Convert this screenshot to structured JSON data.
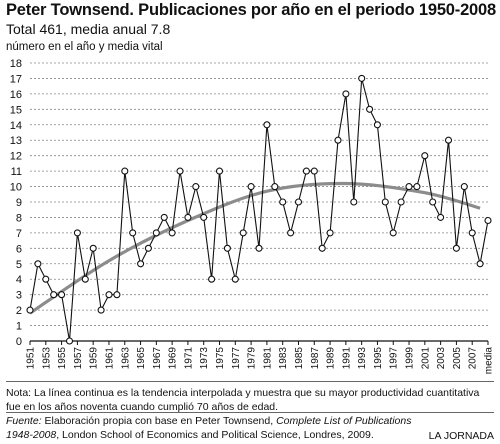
{
  "header": {
    "title": "Peter Townsend. Publicaciones por año en el periodo 1950-2008",
    "subtitle": "Total 461, media anual 7.8"
  },
  "footer": {
    "note": "Nota: La línea continua es la tendencia interpolada y muestra que su mayor productividad cuantitativa fue en los años noventa cuando cumplió 70 años de edad.",
    "source_label": "Fuente:",
    "source_text_1": " Elaboración propia con base en Peter Townsend, ",
    "source_ref_1": "Complete List of Publications",
    "source_ref_2": "1948-2008",
    "source_text_2": ", London School of Economics and Political Science, Londres, 2009.",
    "credit": "LA JORNADA"
  },
  "colors": {
    "series": "#111111",
    "trend": "#8c8c8c",
    "grid": "#888888",
    "axis": "#111111"
  },
  "chart_data": {
    "type": "line",
    "title": "Peter Townsend. Publicaciones por año en el periodo 1950-2008",
    "subtitle": "Total 461, media anual 7.8",
    "ylabel": "número en el año y media vital",
    "xlabel": "",
    "ylim": [
      0,
      18
    ],
    "yticks": [
      0,
      1,
      2,
      3,
      4,
      5,
      6,
      7,
      8,
      9,
      10,
      11,
      12,
      13,
      14,
      15,
      16,
      17,
      18
    ],
    "grid": true,
    "x": [
      "1951",
      "1952",
      "1953",
      "1954",
      "1955",
      "1956",
      "1957",
      "1958",
      "1959",
      "1960",
      "1961",
      "1962",
      "1963",
      "1964",
      "1965",
      "1966",
      "1967",
      "1968",
      "1969",
      "1970",
      "1971",
      "1972",
      "1973",
      "1974",
      "1975",
      "1976",
      "1977",
      "1978",
      "1979",
      "1980",
      "1981",
      "1982",
      "1983",
      "1984",
      "1985",
      "1986",
      "1987",
      "1988",
      "1989",
      "1990",
      "1991",
      "1992",
      "1993",
      "1994",
      "1995",
      "1996",
      "1997",
      "1998",
      "1999",
      "2000",
      "2001",
      "2002",
      "2003",
      "2004",
      "2005",
      "2006",
      "2007",
      "2008",
      "media"
    ],
    "x_tick_labels": [
      "1951",
      "1953",
      "1955",
      "1957",
      "1959",
      "1961",
      "1963",
      "1965",
      "1967",
      "1969",
      "1971",
      "1973",
      "1975",
      "1977",
      "1979",
      "1981",
      "1983",
      "1985",
      "1987",
      "1989",
      "1991",
      "1993",
      "1995",
      "1997",
      "1999",
      "2001",
      "2003",
      "2005",
      "2007",
      "media"
    ],
    "series": [
      {
        "values": [
          2,
          5,
          4,
          3,
          3,
          0,
          7,
          4,
          6,
          2,
          3,
          3,
          11,
          7,
          5,
          6,
          7,
          8,
          7,
          11,
          8,
          10,
          8,
          4,
          11,
          6,
          4,
          7,
          10,
          6,
          14,
          10,
          9,
          7,
          9,
          11,
          11,
          6,
          7,
          13,
          16,
          9,
          17,
          15,
          14,
          9,
          7,
          9,
          10,
          10,
          12,
          9,
          8,
          13,
          6,
          10,
          7,
          5,
          7.8
        ]
      }
    ],
    "trend": {
      "x": [
        "1951",
        "1961",
        "1971",
        "1981",
        "1991",
        "2001",
        "2008"
      ],
      "values": [
        1.8,
        5.2,
        7.8,
        9.7,
        10.2,
        9.6,
        8.6
      ]
    }
  }
}
